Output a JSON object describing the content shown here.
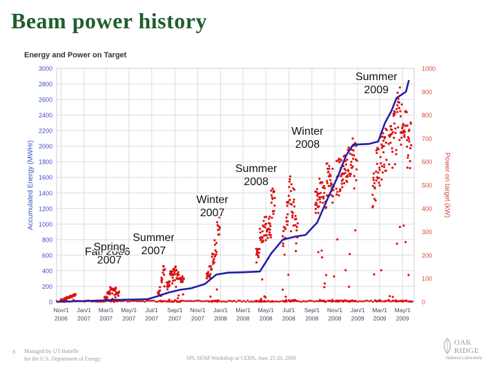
{
  "slide": {
    "title": "Beam power history",
    "page_number": "8",
    "footer_left_1": "Managed by UT-Battelle",
    "footer_left_2": "for the U.S. Department of Energy",
    "footer_center": "SPL HOM Workshop at CERN, June 25-26, 2009",
    "logo_line1": "OAK",
    "logo_line2": "RIDGE",
    "logo_sub": "National Laboratory"
  },
  "chart_data": {
    "type": "line",
    "title": "Energy and Power on Target",
    "ylabel": "Accumulated Energy (MWHr)",
    "y2label": "Power on target (kW)",
    "ylim": [
      0,
      3000
    ],
    "y2lim": [
      0,
      1000
    ],
    "yticks": [
      0,
      200,
      400,
      600,
      800,
      1000,
      1200,
      1400,
      1600,
      1800,
      2000,
      2200,
      2400,
      2600,
      2800,
      3000
    ],
    "y2ticks": [
      0,
      100,
      200,
      300,
      400,
      500,
      600,
      700,
      800,
      900,
      1000
    ],
    "xlim": [
      "2006-10-20",
      "2009-06-01"
    ],
    "xticks": [
      {
        "date": "2006-11-01",
        "l1": "Nov/1",
        "l2": "2006"
      },
      {
        "date": "2007-01-01",
        "l1": "Jan/1",
        "l2": "2007"
      },
      {
        "date": "2007-03-01",
        "l1": "Mar/1",
        "l2": "2007"
      },
      {
        "date": "2007-05-01",
        "l1": "May/1",
        "l2": "2007"
      },
      {
        "date": "2007-07-01",
        "l1": "Jul/1",
        "l2": "2007"
      },
      {
        "date": "2007-09-01",
        "l1": "Sep/1",
        "l2": "2007"
      },
      {
        "date": "2007-11-01",
        "l1": "Nov/1",
        "l2": "2007"
      },
      {
        "date": "2008-01-01",
        "l1": "Jan/1",
        "l2": "2008"
      },
      {
        "date": "2008-03-01",
        "l1": "Mar/1",
        "l2": "2008"
      },
      {
        "date": "2008-05-01",
        "l1": "May/1",
        "l2": "2008"
      },
      {
        "date": "2008-07-01",
        "l1": "Jul/1",
        "l2": "2008"
      },
      {
        "date": "2008-09-01",
        "l1": "Sep/1",
        "l2": "2008"
      },
      {
        "date": "2008-11-01",
        "l1": "Nov/1",
        "l2": "2008"
      },
      {
        "date": "2009-01-01",
        "l1": "Jan/1",
        "l2": "2009"
      },
      {
        "date": "2009-03-01",
        "l1": "Mar/1",
        "l2": "2009"
      },
      {
        "date": "2009-05-01",
        "l1": "May/1",
        "l2": "2009"
      }
    ],
    "grid": true,
    "colors": {
      "energy": "#1f1fa6",
      "power": "#dd1111",
      "left_axis": "#3a4fc4",
      "right_axis": "#d64a3a",
      "tick_labels": "#444a5a",
      "grid": "#d6dbe3",
      "title_text": "#1f5e2c",
      "chart_title": "#333333"
    },
    "energy_series": [
      [
        "2006-10-20",
        0
      ],
      [
        "2007-02-01",
        15
      ],
      [
        "2007-03-20",
        25
      ],
      [
        "2007-05-20",
        30
      ],
      [
        "2007-06-20",
        35
      ],
      [
        "2007-07-15",
        70
      ],
      [
        "2007-08-15",
        120
      ],
      [
        "2007-09-15",
        155
      ],
      [
        "2007-10-15",
        175
      ],
      [
        "2007-11-20",
        230
      ],
      [
        "2007-12-20",
        350
      ],
      [
        "2008-01-20",
        375
      ],
      [
        "2008-03-01",
        380
      ],
      [
        "2008-04-15",
        390
      ],
      [
        "2008-05-15",
        620
      ],
      [
        "2008-06-15",
        800
      ],
      [
        "2008-07-20",
        840
      ],
      [
        "2008-08-15",
        860
      ],
      [
        "2008-09-15",
        1020
      ],
      [
        "2008-10-15",
        1350
      ],
      [
        "2008-11-10",
        1620
      ],
      [
        "2008-12-01",
        1880
      ],
      [
        "2008-12-20",
        2020
      ],
      [
        "2009-02-01",
        2030
      ],
      [
        "2009-02-25",
        2060
      ],
      [
        "2009-03-15",
        2300
      ],
      [
        "2009-04-01",
        2450
      ],
      [
        "2009-04-15",
        2620
      ],
      [
        "2009-05-10",
        2700
      ],
      [
        "2009-05-18",
        2850
      ]
    ],
    "power_bursts": [
      {
        "start": "2006-11-01",
        "end": "2006-12-10",
        "levels": [
          10,
          15,
          20,
          25,
          30
        ]
      },
      {
        "start": "2007-02-25",
        "end": "2007-04-05",
        "levels": [
          20,
          40,
          60,
          60,
          40
        ]
      },
      {
        "start": "2007-07-18",
        "end": "2007-08-05",
        "levels": [
          40,
          60,
          100,
          140
        ]
      },
      {
        "start": "2007-08-10",
        "end": "2007-09-25",
        "levels": [
          80,
          120,
          140,
          120,
          100
        ]
      },
      {
        "start": "2007-11-25",
        "end": "2007-12-30",
        "levels": [
          120,
          140,
          190,
          240,
          340
        ]
      },
      {
        "start": "2008-04-05",
        "end": "2008-05-25",
        "levels": [
          210,
          300,
          350,
          340,
          450
        ]
      },
      {
        "start": "2008-06-15",
        "end": "2008-07-25",
        "levels": [
          300,
          400,
          500,
          450,
          350
        ]
      },
      {
        "start": "2008-09-10",
        "end": "2008-10-30",
        "levels": [
          440,
          480,
          500,
          540,
          520
        ]
      },
      {
        "start": "2008-11-05",
        "end": "2008-12-30",
        "levels": [
          560,
          590,
          600,
          620,
          650
        ]
      },
      {
        "start": "2009-02-10",
        "end": "2009-03-20",
        "levels": [
          500,
          600,
          650,
          700
        ]
      },
      {
        "start": "2009-03-25",
        "end": "2009-05-25",
        "levels": [
          700,
          780,
          840,
          760,
          700
        ]
      }
    ],
    "annotations": [
      {
        "l1": "Fall 2006",
        "l2": "",
        "date": "2007-03-05",
        "y": 600
      },
      {
        "l1": "Spring",
        "l2": "2007",
        "date": "2007-03-10",
        "y": 660
      },
      {
        "l1": "Summer",
        "l2": "2007",
        "date": "2007-07-06",
        "y": 780
      },
      {
        "l1": "Winter",
        "l2": "2007",
        "date": "2007-12-10",
        "y": 1270
      },
      {
        "l1": "Summer",
        "l2": "2008",
        "date": "2008-04-05",
        "y": 1670
      },
      {
        "l1": "Winter",
        "l2": "2008",
        "date": "2008-08-20",
        "y": 2150
      },
      {
        "l1": "Summer",
        "l2": "2009",
        "date": "2009-02-20",
        "y": 2850
      }
    ]
  }
}
